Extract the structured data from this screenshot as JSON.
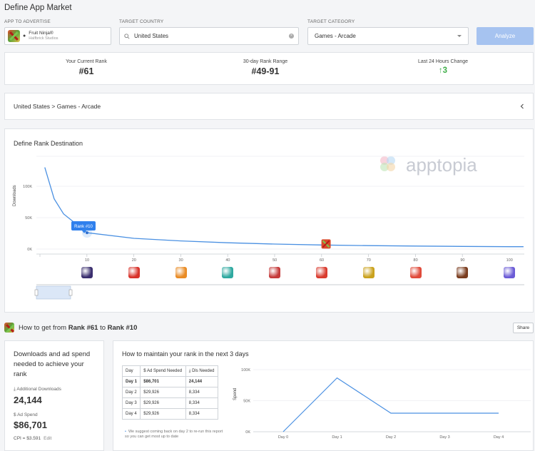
{
  "page_title": "Define App Market",
  "app_field": {
    "label": "APP TO ADVERTISE",
    "name": "Fruit Ninja®",
    "developer": "Halfbrick Studios"
  },
  "country_field": {
    "label": "TARGET COUNTRY",
    "value": "United States"
  },
  "category_field": {
    "label": "TARGET CATEGORY",
    "value": "Games - Arcade"
  },
  "analyze_label": "Analyze",
  "stats": [
    {
      "label": "Your Current Rank",
      "value": "#61"
    },
    {
      "label": "30-day Rank Range",
      "value": "#49-91"
    },
    {
      "label": "Last 24 Hours Change",
      "value": "↑3"
    }
  ],
  "breadcrumb": "United States > Games - Arcade",
  "rank_panel": {
    "title": "Define Rank Destination",
    "watermark": "apptopia",
    "tooltip": "Rank #10",
    "chart_data": {
      "type": "line",
      "ylabel": "Downloads",
      "y_ticks": [
        "100K",
        "50K",
        "0K"
      ],
      "x_ticks": [
        "10",
        "20",
        "30",
        "40",
        "50",
        "60",
        "70",
        "80",
        "90",
        "100"
      ],
      "x": [
        1,
        3,
        5,
        10,
        20,
        30,
        40,
        50,
        60,
        70,
        80,
        90,
        100,
        103
      ],
      "y": [
        130000,
        80000,
        56000,
        26000,
        17000,
        13000,
        10000,
        8000,
        6500,
        5500,
        4800,
        4200,
        3800,
        3700
      ],
      "selected_rank": 10,
      "current_rank": 61,
      "app_icon_colors": [
        "#3a2e6e",
        "#d8322a",
        "#e98b24",
        "#2fa9a0",
        "#c53a3a",
        "#d93b2e",
        "#caa21d",
        "#e04a3a",
        "#7a3c1e",
        "#6b5bd6"
      ]
    }
  },
  "howto": {
    "prefix": "How to get from ",
    "from": "Rank #61",
    "middle": " to ",
    "to": "Rank #10"
  },
  "share_label": "Share",
  "left_card": {
    "title": "Downloads and ad spend needed to achieve your rank",
    "downloads_label": "Additional Downloads",
    "downloads_value": "24,144",
    "spend_label": "Ad Spend",
    "spend_value": "$86,701",
    "cpi": "CPI = $3.591",
    "edit": "Edit"
  },
  "right_card": {
    "title": "How to maintain your rank in the next 3 days",
    "table_headers": [
      "Day",
      "Ad Spend Needed",
      "Dls Needed"
    ],
    "table_rows": [
      [
        "Day 1",
        "$86,701",
        "24,144"
      ],
      [
        "Day 2",
        "$29,926",
        "8,334"
      ],
      [
        "Day 3",
        "$29,926",
        "8,334"
      ],
      [
        "Day 4",
        "$29,926",
        "8,334"
      ]
    ],
    "note": "We suggest coming back on day 2 to re-run this report so you can get most up to date",
    "chart_data": {
      "type": "line",
      "ylabel": "Spend",
      "categories": [
        "Day 0",
        "Day 1",
        "Day 2",
        "Day 3",
        "Day 4"
      ],
      "values": [
        0,
        86701,
        29926,
        29926,
        29926
      ],
      "y_ticks": [
        "100K",
        "50K",
        "0K"
      ],
      "ylim": [
        0,
        100000
      ]
    }
  }
}
